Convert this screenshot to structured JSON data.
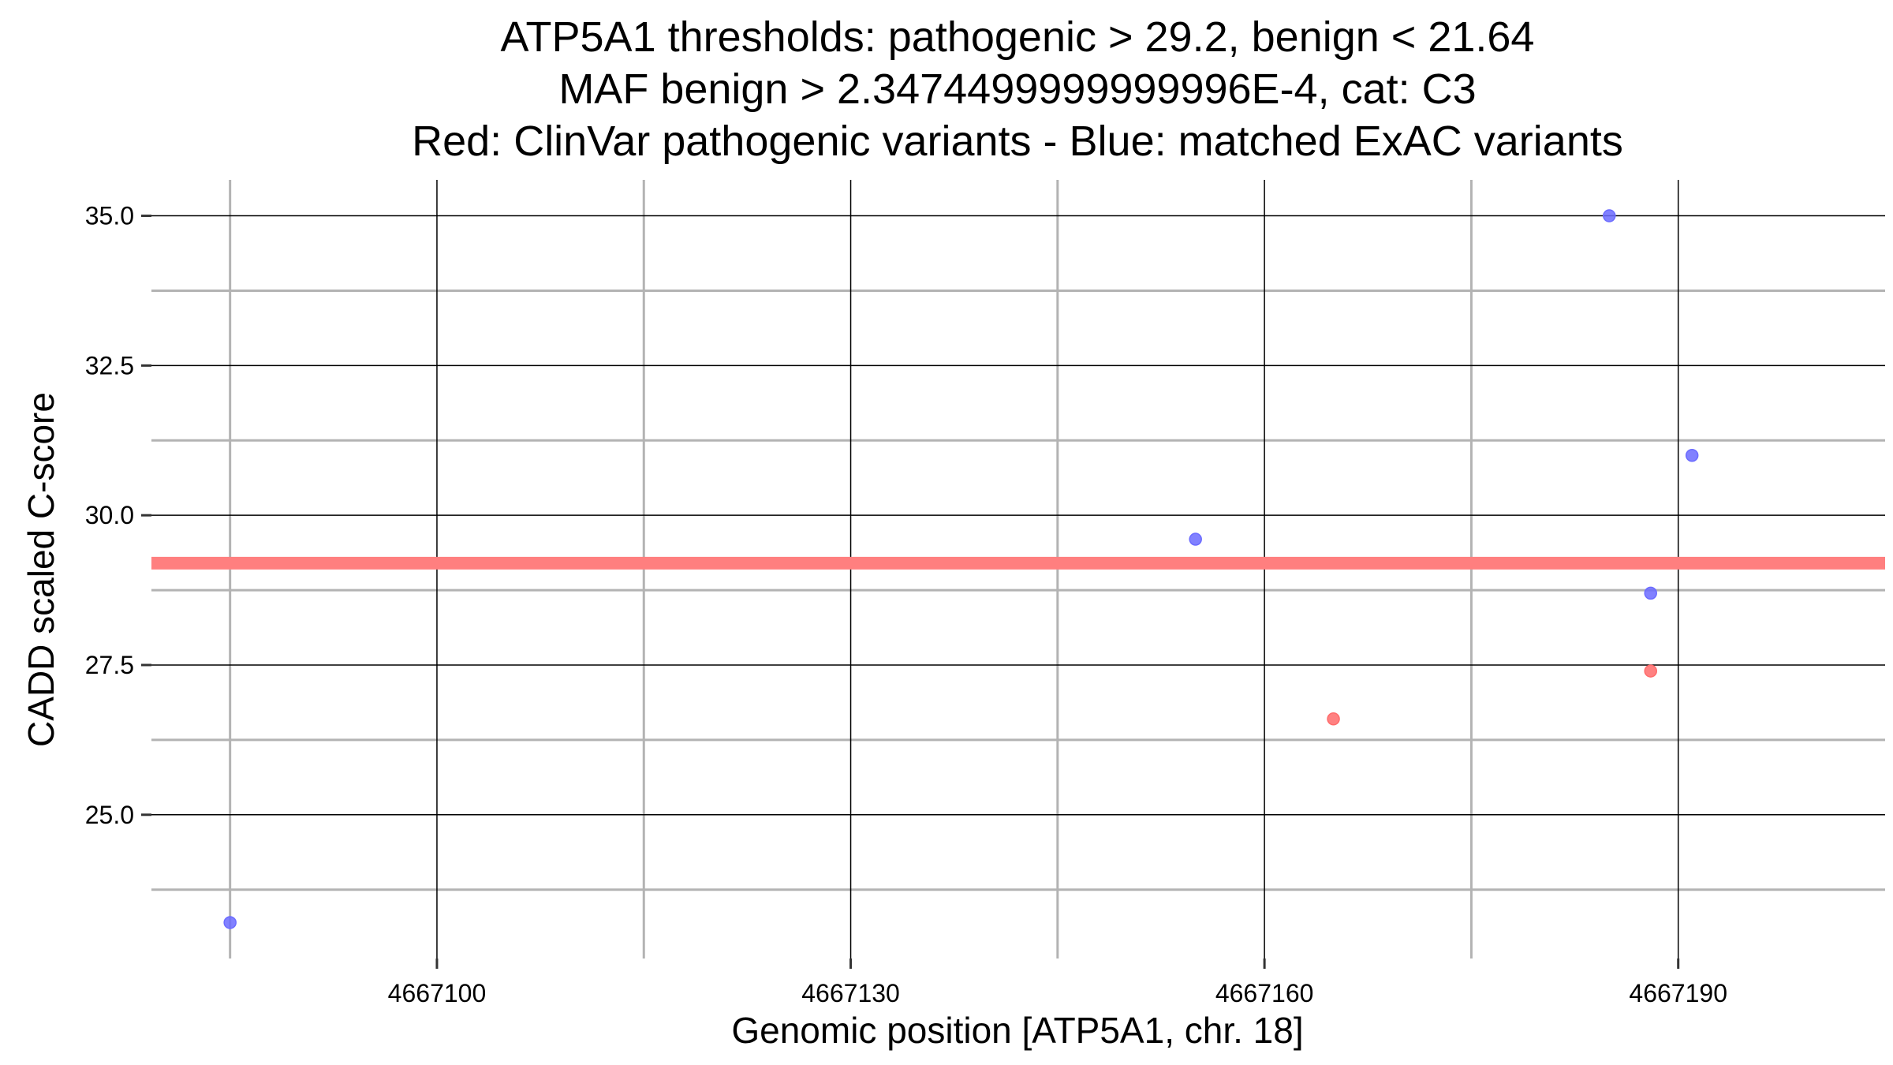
{
  "colors": {
    "background": "#ffffff",
    "major_grid": "#000000",
    "minor_grid": "#b3b3b3",
    "threshold_line": "#ff7f7f",
    "exac_points": "#6b6bff",
    "clinvar_points": "#ff6b6b"
  },
  "chart_data": {
    "type": "scatter",
    "title_lines": [
      "ATP5A1 thresholds: pathogenic > 29.2, benign < 21.64",
      "MAF benign > 2.3474499999999996E-4, cat: C3",
      "Red: ClinVar pathogenic variants - Blue: matched ExAC variants"
    ],
    "xlabel": "Genomic position [ATP5A1, chr. 18]",
    "ylabel": "CADD scaled C-score",
    "xlim": [
      4667079.3,
      4667205.0
    ],
    "ylim": [
      22.6,
      35.6
    ],
    "x_major_ticks": [
      4667100,
      4667130,
      4667160,
      4667190
    ],
    "x_tick_labels": [
      "4667100",
      "4667130",
      "4667160",
      "4667190"
    ],
    "x_minor_ticks": [
      4667085,
      4667115,
      4667145,
      4667175
    ],
    "y_major_ticks": [
      25.0,
      27.5,
      30.0,
      32.5,
      35.0
    ],
    "y_tick_labels": [
      "25.0",
      "27.5",
      "30.0",
      "32.5",
      "35.0"
    ],
    "y_minor_ticks": [
      23.75,
      26.25,
      28.75,
      31.25,
      33.75
    ],
    "threshold": {
      "value": 29.2,
      "label": "pathogenic threshold"
    },
    "series": [
      {
        "name": "matched ExAC variants",
        "color_key": "exac_points",
        "points": [
          {
            "x": 4667085,
            "y": 23.2
          },
          {
            "x": 4667155,
            "y": 29.6
          },
          {
            "x": 4667185,
            "y": 35.0
          },
          {
            "x": 4667188,
            "y": 28.7
          },
          {
            "x": 4667191,
            "y": 31.0
          }
        ]
      },
      {
        "name": "ClinVar pathogenic variants",
        "color_key": "clinvar_points",
        "points": [
          {
            "x": 4667165,
            "y": 26.6
          },
          {
            "x": 4667188,
            "y": 27.4
          }
        ]
      }
    ]
  }
}
